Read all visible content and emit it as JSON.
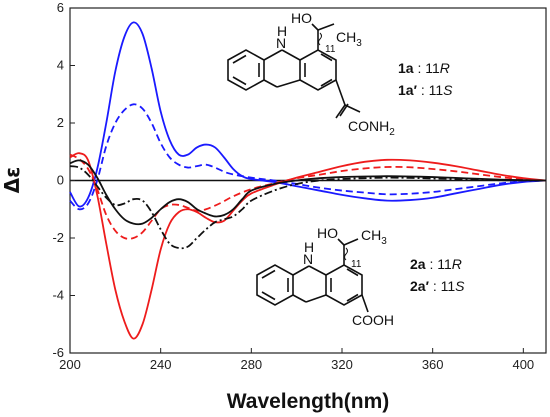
{
  "chart_data": {
    "type": "line",
    "title": "",
    "xlabel": "Wavelength(nm)",
    "ylabel": "Δε",
    "xlim": [
      200,
      410
    ],
    "ylim": [
      -6,
      6
    ],
    "xticks": [
      200,
      240,
      280,
      320,
      360,
      400
    ],
    "yticks": [
      -6,
      -4,
      -2,
      0,
      2,
      4,
      6
    ],
    "grid": false,
    "legend": "none",
    "series": [
      {
        "color": "#1a1aff",
        "dash": "solid",
        "points": [
          [
            200,
            -0.4
          ],
          [
            204,
            -0.9
          ],
          [
            208,
            -0.6
          ],
          [
            212,
            0.4
          ],
          [
            216,
            2.0
          ],
          [
            220,
            3.8
          ],
          [
            224,
            5.0
          ],
          [
            228,
            5.5
          ],
          [
            232,
            5.1
          ],
          [
            236,
            3.9
          ],
          [
            240,
            2.4
          ],
          [
            244,
            1.4
          ],
          [
            248,
            0.9
          ],
          [
            252,
            0.9
          ],
          [
            256,
            1.15
          ],
          [
            260,
            1.25
          ],
          [
            264,
            1.15
          ],
          [
            268,
            0.8
          ],
          [
            272,
            0.4
          ],
          [
            276,
            0.15
          ],
          [
            280,
            0.05
          ],
          [
            290,
            -0.05
          ],
          [
            300,
            -0.2
          ],
          [
            310,
            -0.35
          ],
          [
            320,
            -0.5
          ],
          [
            330,
            -0.62
          ],
          [
            340,
            -0.7
          ],
          [
            350,
            -0.68
          ],
          [
            360,
            -0.6
          ],
          [
            370,
            -0.45
          ],
          [
            380,
            -0.3
          ],
          [
            390,
            -0.15
          ],
          [
            400,
            -0.05
          ],
          [
            410,
            0
          ]
        ]
      },
      {
        "color": "#1a1aff",
        "dash": "dashed",
        "points": [
          [
            200,
            -0.7
          ],
          [
            204,
            -1.0
          ],
          [
            208,
            -0.8
          ],
          [
            212,
            0.0
          ],
          [
            216,
            1.2
          ],
          [
            220,
            2.0
          ],
          [
            224,
            2.45
          ],
          [
            228,
            2.65
          ],
          [
            232,
            2.5
          ],
          [
            236,
            2.0
          ],
          [
            240,
            1.3
          ],
          [
            244,
            0.8
          ],
          [
            248,
            0.55
          ],
          [
            252,
            0.45
          ],
          [
            256,
            0.5
          ],
          [
            260,
            0.55
          ],
          [
            264,
            0.45
          ],
          [
            270,
            0.25
          ],
          [
            280,
            0.1
          ],
          [
            290,
            0.0
          ],
          [
            300,
            -0.12
          ],
          [
            310,
            -0.25
          ],
          [
            320,
            -0.35
          ],
          [
            330,
            -0.42
          ],
          [
            340,
            -0.48
          ],
          [
            350,
            -0.46
          ],
          [
            360,
            -0.4
          ],
          [
            370,
            -0.3
          ],
          [
            380,
            -0.2
          ],
          [
            390,
            -0.1
          ],
          [
            400,
            -0.03
          ],
          [
            410,
            0
          ]
        ]
      },
      {
        "color": "#ee1c1c",
        "dash": "solid",
        "points": [
          [
            200,
            0.8
          ],
          [
            204,
            0.95
          ],
          [
            208,
            0.7
          ],
          [
            212,
            -0.5
          ],
          [
            216,
            -2.2
          ],
          [
            220,
            -3.8
          ],
          [
            224,
            -4.9
          ],
          [
            228,
            -5.5
          ],
          [
            232,
            -5.0
          ],
          [
            236,
            -3.8
          ],
          [
            240,
            -2.4
          ],
          [
            244,
            -1.5
          ],
          [
            248,
            -1.1
          ],
          [
            252,
            -1.0
          ],
          [
            256,
            -1.1
          ],
          [
            260,
            -1.3
          ],
          [
            264,
            -1.45
          ],
          [
            268,
            -1.4
          ],
          [
            272,
            -1.05
          ],
          [
            276,
            -0.7
          ],
          [
            280,
            -0.45
          ],
          [
            290,
            -0.15
          ],
          [
            300,
            0.1
          ],
          [
            310,
            0.3
          ],
          [
            320,
            0.5
          ],
          [
            330,
            0.65
          ],
          [
            340,
            0.72
          ],
          [
            350,
            0.7
          ],
          [
            360,
            0.62
          ],
          [
            370,
            0.5
          ],
          [
            380,
            0.35
          ],
          [
            390,
            0.2
          ],
          [
            400,
            0.08
          ],
          [
            410,
            0
          ]
        ]
      },
      {
        "color": "#ee1c1c",
        "dash": "dashed",
        "points": [
          [
            200,
            0.9
          ],
          [
            204,
            0.75
          ],
          [
            208,
            0.4
          ],
          [
            212,
            -0.3
          ],
          [
            216,
            -1.2
          ],
          [
            220,
            -1.75
          ],
          [
            224,
            -2.0
          ],
          [
            228,
            -2.0
          ],
          [
            232,
            -1.8
          ],
          [
            236,
            -1.4
          ],
          [
            240,
            -1.0
          ],
          [
            244,
            -0.85
          ],
          [
            248,
            -0.85
          ],
          [
            252,
            -0.95
          ],
          [
            256,
            -1.05
          ],
          [
            260,
            -1.0
          ],
          [
            266,
            -0.8
          ],
          [
            272,
            -0.55
          ],
          [
            280,
            -0.3
          ],
          [
            290,
            -0.1
          ],
          [
            300,
            0.08
          ],
          [
            310,
            0.2
          ],
          [
            320,
            0.33
          ],
          [
            330,
            0.42
          ],
          [
            340,
            0.47
          ],
          [
            350,
            0.46
          ],
          [
            360,
            0.4
          ],
          [
            370,
            0.32
          ],
          [
            380,
            0.22
          ],
          [
            390,
            0.12
          ],
          [
            400,
            0.04
          ],
          [
            410,
            0
          ]
        ]
      },
      {
        "color": "#111111",
        "dash": "solid",
        "points": [
          [
            200,
            0.6
          ],
          [
            204,
            0.7
          ],
          [
            208,
            0.55
          ],
          [
            212,
            0.1
          ],
          [
            216,
            -0.5
          ],
          [
            220,
            -1.0
          ],
          [
            224,
            -1.35
          ],
          [
            228,
            -1.5
          ],
          [
            232,
            -1.5
          ],
          [
            236,
            -1.3
          ],
          [
            240,
            -1.0
          ],
          [
            244,
            -0.75
          ],
          [
            248,
            -0.65
          ],
          [
            252,
            -0.75
          ],
          [
            256,
            -1.0
          ],
          [
            260,
            -1.15
          ],
          [
            264,
            -1.25
          ],
          [
            268,
            -1.2
          ],
          [
            272,
            -1.0
          ],
          [
            276,
            -0.65
          ],
          [
            280,
            -0.35
          ],
          [
            290,
            -0.12
          ],
          [
            300,
            0.0
          ],
          [
            310,
            0.08
          ],
          [
            320,
            0.12
          ],
          [
            330,
            0.14
          ],
          [
            340,
            0.15
          ],
          [
            350,
            0.14
          ],
          [
            360,
            0.12
          ],
          [
            370,
            0.09
          ],
          [
            380,
            0.06
          ],
          [
            390,
            0.03
          ],
          [
            400,
            0.01
          ],
          [
            410,
            0
          ]
        ]
      },
      {
        "color": "#111111",
        "dash": "dashdot",
        "points": [
          [
            200,
            0.5
          ],
          [
            204,
            0.45
          ],
          [
            208,
            0.2
          ],
          [
            212,
            -0.2
          ],
          [
            216,
            -0.6
          ],
          [
            220,
            -0.85
          ],
          [
            224,
            -0.8
          ],
          [
            228,
            -0.65
          ],
          [
            232,
            -0.7
          ],
          [
            236,
            -1.1
          ],
          [
            240,
            -1.7
          ],
          [
            244,
            -2.2
          ],
          [
            248,
            -2.35
          ],
          [
            252,
            -2.3
          ],
          [
            256,
            -2.0
          ],
          [
            260,
            -1.7
          ],
          [
            264,
            -1.45
          ],
          [
            268,
            -1.35
          ],
          [
            272,
            -1.25
          ],
          [
            276,
            -1.0
          ],
          [
            280,
            -0.7
          ],
          [
            290,
            -0.35
          ],
          [
            300,
            -0.12
          ],
          [
            310,
            0.0
          ],
          [
            320,
            0.05
          ],
          [
            330,
            0.08
          ],
          [
            340,
            0.1
          ],
          [
            350,
            0.09
          ],
          [
            360,
            0.07
          ],
          [
            370,
            0.05
          ],
          [
            380,
            0.03
          ],
          [
            390,
            0.01
          ],
          [
            410,
            0
          ]
        ]
      }
    ],
    "annotations": {
      "top": {
        "label1_id": "1a",
        "label1_cfg": " : 11",
        "label1_r": "R",
        "label2_id": "1a′",
        "label2_cfg": " : 11",
        "label2_s": "S"
      },
      "bottom": {
        "label1_id": "2a",
        "label1_cfg": " : 11",
        "label1_r": "R",
        "label2_id": "2a′",
        "label2_cfg": " : 11",
        "label2_s": "S"
      }
    },
    "molecules": {
      "top": {
        "nh": "H",
        "n": "N",
        "ho": "HO",
        "ch3": "CH",
        "ch3_sub": "3",
        "c11": "11",
        "sub_group": "CONH",
        "sub_group_sub": "2"
      },
      "bottom": {
        "nh": "H",
        "n": "N",
        "ho": "HO",
        "ch3": "CH",
        "ch3_sub": "3",
        "c11": "11",
        "sub_group": "COOH",
        "sub_group_sub": ""
      }
    }
  }
}
